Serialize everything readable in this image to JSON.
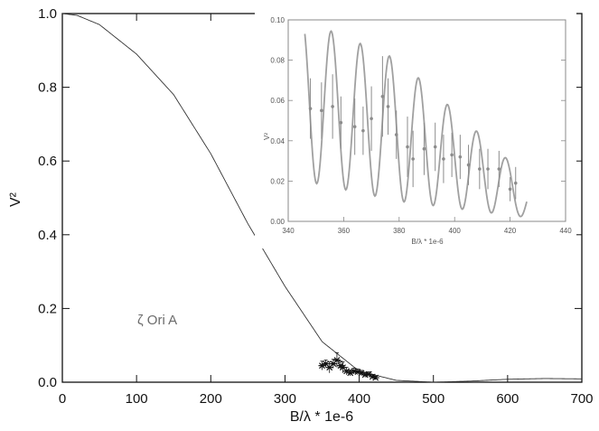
{
  "chart_data": [
    {
      "type": "line",
      "panel": "main",
      "xlabel": "B/λ * 1e-6",
      "ylabel": "V²",
      "xlim": [
        0,
        700
      ],
      "ylim": [
        0,
        1.0
      ],
      "xticks": [
        "0",
        "100",
        "200",
        "300",
        "400",
        "500",
        "600",
        "700"
      ],
      "yticks": [
        "0.0",
        "0.2",
        "0.4",
        "0.6",
        "0.8",
        "1.0"
      ],
      "annotation": "ζ Ori A",
      "grid": false,
      "series": [
        {
          "kind": "model-curve",
          "x": [
            0,
            20,
            50,
            100,
            150,
            200,
            250,
            300,
            350,
            400,
            450,
            500,
            550,
            600,
            650,
            700
          ],
          "y": [
            1.0,
            0.995,
            0.97,
            0.89,
            0.78,
            0.62,
            0.43,
            0.26,
            0.11,
            0.03,
            0.005,
            0.0,
            0.003,
            0.008,
            0.01,
            0.009
          ]
        },
        {
          "kind": "data-points",
          "x": [
            350,
            355,
            360,
            365,
            370,
            375,
            378,
            383,
            388,
            393,
            398,
            403,
            408,
            413,
            418,
            422
          ],
          "y": [
            0.045,
            0.05,
            0.04,
            0.05,
            0.06,
            0.045,
            0.04,
            0.03,
            0.025,
            0.03,
            0.028,
            0.025,
            0.02,
            0.022,
            0.015,
            0.012
          ],
          "yerr": [
            0.012,
            0.01,
            0.015,
            0.012,
            0.02,
            0.012,
            0.015,
            0.01,
            0.008,
            0.008,
            0.008,
            0.007,
            0.007,
            0.006,
            0.006,
            0.005
          ]
        }
      ]
    },
    {
      "type": "line",
      "panel": "inset",
      "xlabel": "B/λ * 1e-6",
      "ylabel": "V²",
      "xlim": [
        340,
        440
      ],
      "ylim": [
        0,
        0.1
      ],
      "xticks": [
        "340",
        "360",
        "380",
        "400",
        "420",
        "440"
      ],
      "yticks": [
        "0.00",
        "0.02",
        "0.04",
        "0.06",
        "0.08",
        "0.10"
      ],
      "grid": false,
      "series": [
        {
          "kind": "model-curve",
          "x_start": 346,
          "x_end": 426,
          "period": 10.5,
          "phase_peak_x": 345,
          "envelope_x": [
            346,
            380,
            426
          ],
          "envelope_mean": [
            0.06,
            0.045,
            0.012
          ],
          "envelope_amplitude": [
            0.04,
            0.035,
            0.01
          ]
        },
        {
          "kind": "data-points",
          "x": [
            348,
            352,
            356,
            359,
            364,
            367,
            370,
            374,
            376,
            379,
            383,
            385,
            389,
            393,
            396,
            399,
            402,
            405,
            409,
            412,
            416,
            420,
            422
          ],
          "y": [
            0.056,
            0.055,
            0.057,
            0.049,
            0.047,
            0.045,
            0.051,
            0.062,
            0.057,
            0.043,
            0.037,
            0.031,
            0.036,
            0.037,
            0.031,
            0.033,
            0.032,
            0.028,
            0.026,
            0.026,
            0.026,
            0.016,
            0.019
          ],
          "yerr": [
            0.015,
            0.014,
            0.016,
            0.013,
            0.014,
            0.012,
            0.016,
            0.02,
            0.014,
            0.012,
            0.015,
            0.014,
            0.013,
            0.012,
            0.012,
            0.011,
            0.011,
            0.01,
            0.01,
            0.01,
            0.009,
            0.006,
            0.008
          ]
        }
      ]
    }
  ]
}
